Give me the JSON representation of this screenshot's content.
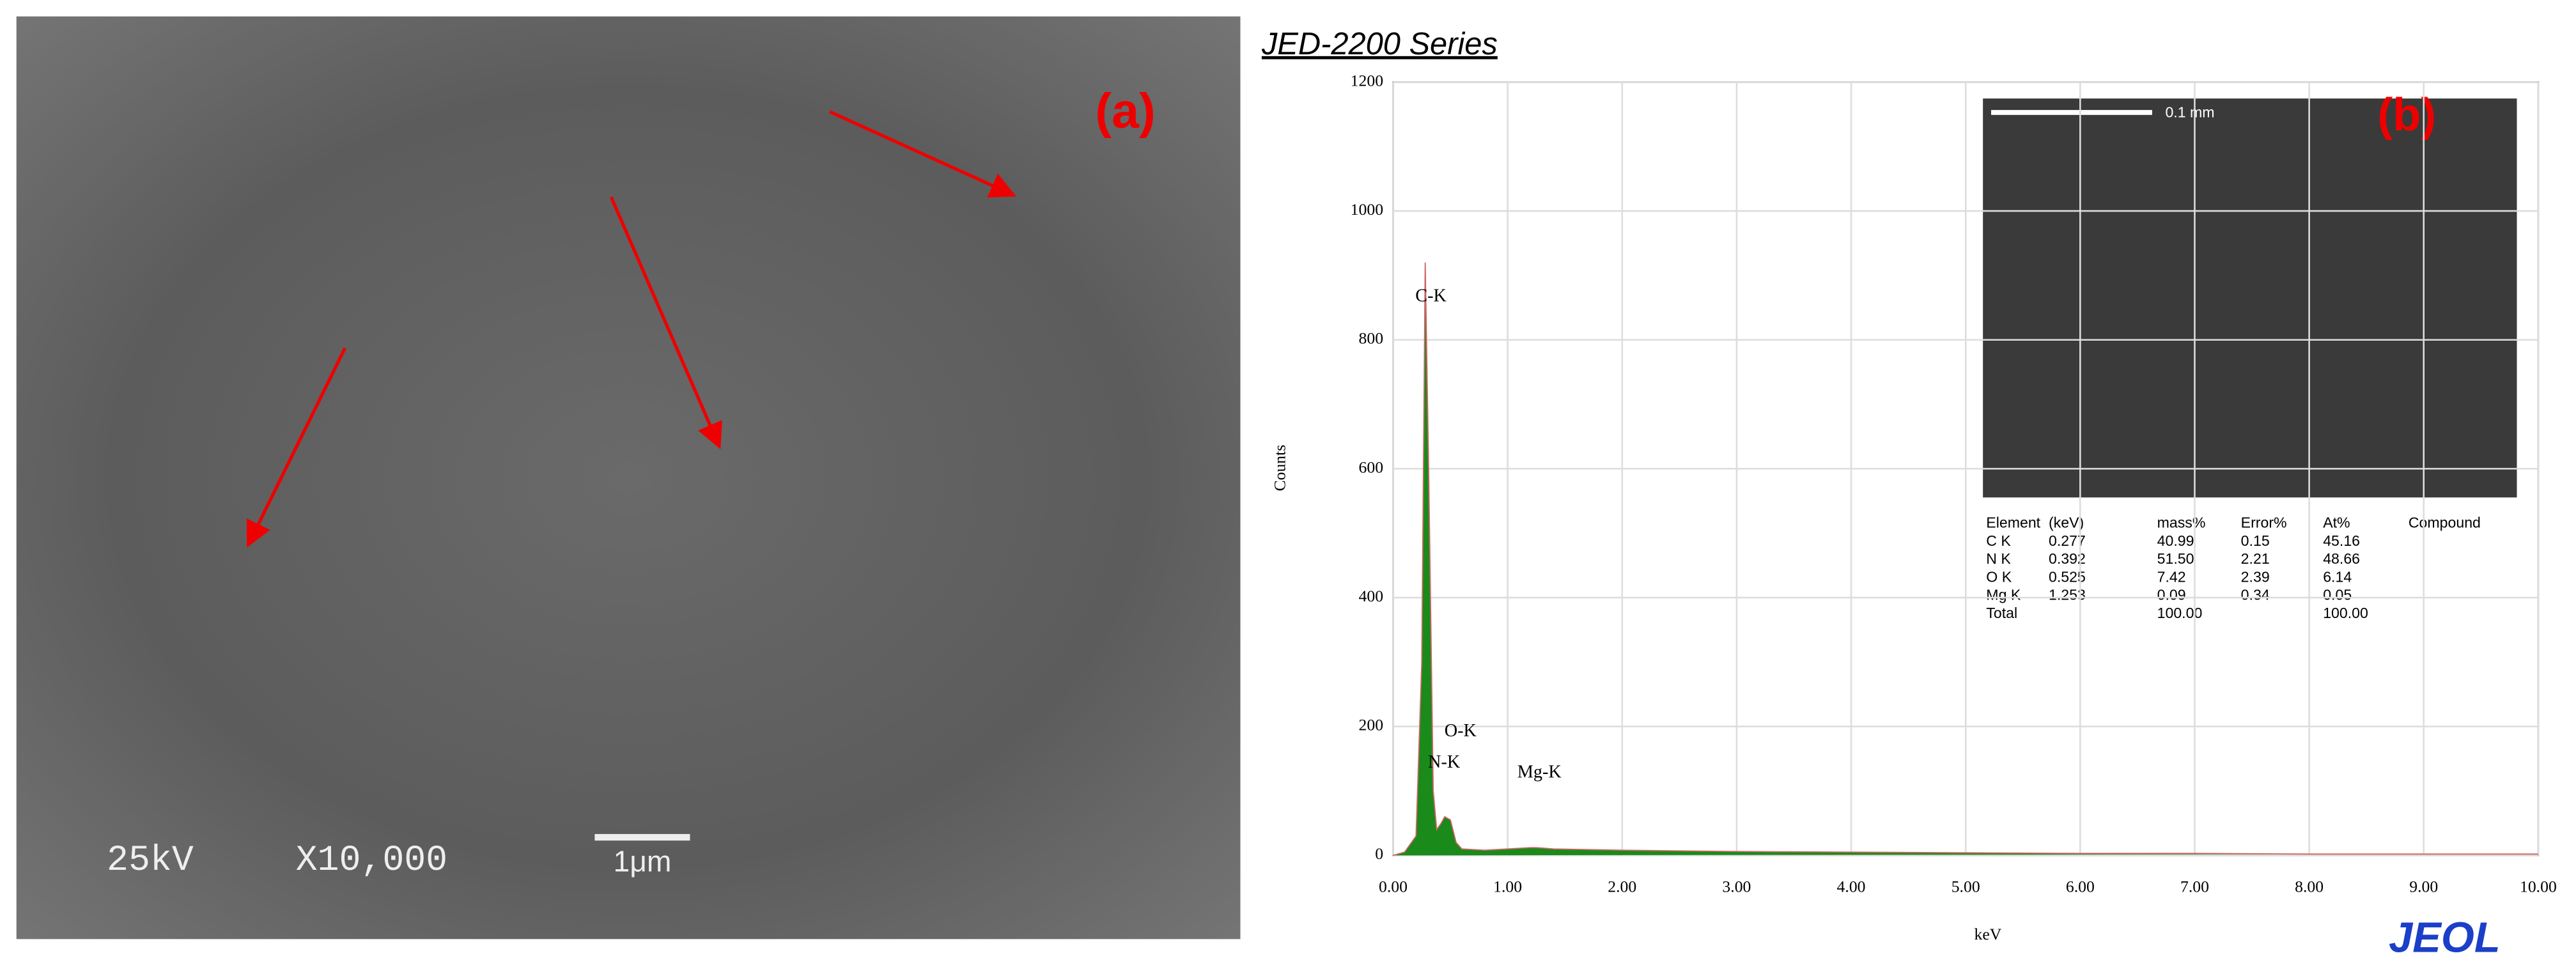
{
  "sem_image": {
    "label": "(a)",
    "voltage": "25kV",
    "magnification": "X10,000",
    "scale_bar": "1μm"
  },
  "inset_image": {
    "label": "(b)",
    "scale_bar": "0.1 mm"
  },
  "table": {
    "header": [
      "Element",
      "(keV)",
      "mass%",
      "Error%",
      "At%",
      "Compound"
    ],
    "rows": [
      [
        "C K",
        "0.277",
        "40.99",
        "0.15",
        "45.16"
      ],
      [
        "N K",
        "0.392",
        "51.50",
        "2.21",
        "48.66"
      ],
      [
        "O K",
        "0.525",
        "7.42",
        "2.39",
        "6.14"
      ],
      [
        "Mg K",
        "1.253",
        "0.09",
        "0.34",
        "0.05"
      ],
      [
        "Total",
        null,
        "100.00",
        null,
        "100.00"
      ]
    ]
  },
  "logo": "JEOL",
  "chart_data": {
    "type": "area",
    "title": "JED-2200 Series",
    "xlabel": "keV",
    "ylabel": "Counts",
    "color": "#1a8a1a",
    "grid": true,
    "peak_labels": [
      "C-K",
      "N-K",
      "O-K",
      "Mg-K"
    ],
    "x": [
      0,
      0.1,
      0.2,
      0.25,
      0.28,
      0.31,
      0.35,
      0.38,
      0.42,
      0.45,
      0.5,
      0.55,
      0.6,
      0.8,
      1.0,
      1.2,
      1.25,
      1.4,
      2,
      3,
      4,
      5,
      6,
      7,
      8,
      9,
      10
    ],
    "values": [
      0,
      5,
      30,
      300,
      920,
      600,
      100,
      40,
      50,
      60,
      55,
      20,
      10,
      8,
      10,
      12,
      12,
      10,
      8,
      6,
      5,
      4,
      3,
      3,
      2,
      2,
      2
    ],
    "xlim": [
      0,
      10
    ],
    "ylim": [
      0,
      1200
    ],
    "xticks": [
      {
        "value": 0,
        "label": "0.00"
      },
      {
        "value": 1,
        "label": "1.00"
      },
      {
        "value": 2,
        "label": "2.00"
      },
      {
        "value": 3,
        "label": "3.00"
      },
      {
        "value": 4,
        "label": "4.00"
      },
      {
        "value": 5,
        "label": "5.00"
      },
      {
        "value": 6,
        "label": "6.00"
      },
      {
        "value": 7,
        "label": "7.00"
      },
      {
        "value": 8,
        "label": "8.00"
      },
      {
        "value": 9,
        "label": "9.00"
      },
      {
        "value": 10,
        "label": "10.00"
      }
    ],
    "yticks": [
      0,
      200,
      400,
      600,
      800,
      1000,
      1200
    ]
  }
}
